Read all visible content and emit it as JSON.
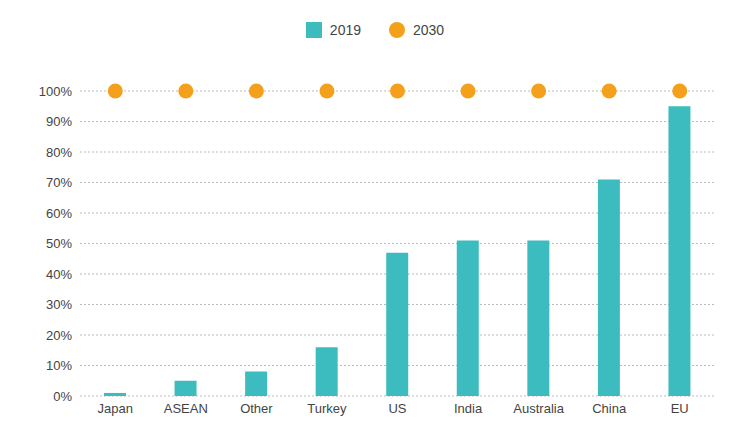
{
  "chart_data": {
    "type": "bar",
    "categories": [
      "Japan",
      "ASEAN",
      "Other",
      "Turkey",
      "US",
      "India",
      "Australia",
      "China",
      "EU"
    ],
    "series": [
      {
        "name": "2019",
        "type": "bar",
        "color": "#3dbcbf",
        "values": [
          1,
          5,
          8,
          16,
          47,
          51,
          51,
          71,
          95
        ]
      },
      {
        "name": "2030",
        "type": "scatter",
        "color": "#f5a01a",
        "marker": "circle",
        "values": [
          100,
          100,
          100,
          100,
          100,
          100,
          100,
          100,
          100
        ]
      }
    ],
    "ylim": [
      0,
      100
    ],
    "yticks": [
      {
        "value": 0,
        "label": "0%"
      },
      {
        "value": 10,
        "label": "10%"
      },
      {
        "value": 20,
        "label": "20%"
      },
      {
        "value": 30,
        "label": "30%"
      },
      {
        "value": 40,
        "label": "40%"
      },
      {
        "value": 50,
        "label": "50%"
      },
      {
        "value": 60,
        "label": "60%"
      },
      {
        "value": 70,
        "label": "70%"
      },
      {
        "value": 80,
        "label": "80%"
      },
      {
        "value": 90,
        "label": "90%"
      },
      {
        "value": 100,
        "label": "100%"
      }
    ],
    "grid": true,
    "legend": "top"
  }
}
